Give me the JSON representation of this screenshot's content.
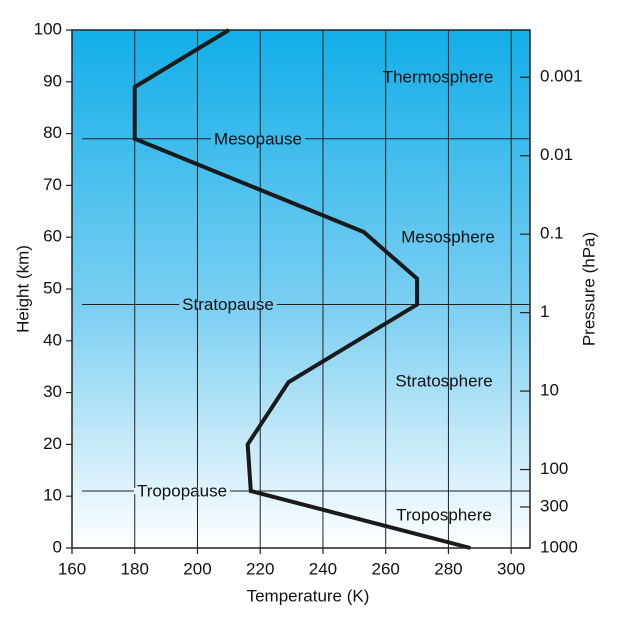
{
  "chart_data": {
    "type": "line",
    "x_label": "Temperature (K)",
    "y_label": "Height (km)",
    "y2_label": "Pressure (hPa)",
    "xlim": [
      160,
      306
    ],
    "xticks": [
      160,
      180,
      200,
      220,
      240,
      260,
      280,
      300
    ],
    "ylim": [
      0,
      100
    ],
    "yticks": [
      0,
      10,
      20,
      30,
      40,
      50,
      60,
      70,
      80,
      90,
      100
    ],
    "y2lim": [
      1000,
      0.00025
    ],
    "y2scale": "log",
    "y2ticks": [
      0.001,
      0.01,
      0.1,
      1,
      10,
      100,
      300,
      1000
    ],
    "grid": true,
    "series": [
      {
        "color": "#1a1a1a",
        "x": [
          210,
          180,
          180,
          253,
          270,
          270,
          229,
          216,
          217,
          287
        ],
        "values": [
          100,
          89,
          79,
          61,
          52,
          47,
          32,
          20,
          11,
          0
        ]
      }
    ],
    "boundaries": [
      {
        "name": "Mesopause",
        "height": 79
      },
      {
        "name": "Stratopause",
        "height": 47
      },
      {
        "name": "Tropopause",
        "height": 11
      }
    ],
    "layers": [
      "Thermosphere",
      "Mesosphere",
      "Stratosphere",
      "Troposphere"
    ]
  }
}
